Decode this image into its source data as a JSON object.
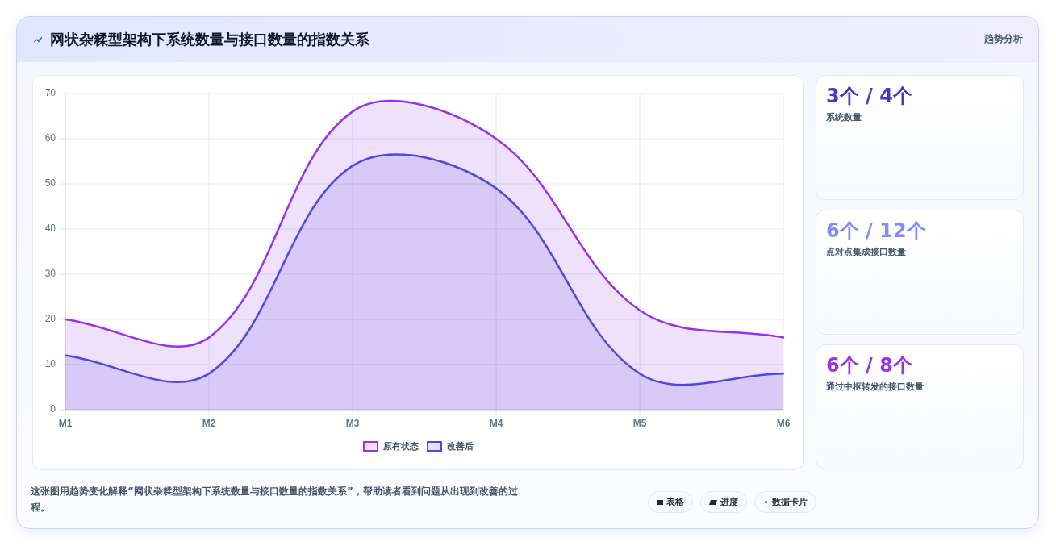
{
  "chart_data": [
    {
      "type": "area",
      "title": "网状杂糅型架构下系统数量与接口数量的指数关系",
      "categories": [
        "M1",
        "M2",
        "M3",
        "M4",
        "M5",
        "M6"
      ],
      "series": [
        {
          "name": "原有状态",
          "color": "#9333ea",
          "values": [
            20,
            16,
            66,
            60,
            22,
            16
          ]
        },
        {
          "name": "改善后",
          "color": "#4f46e5",
          "values": [
            12,
            8,
            54,
            49,
            8,
            8
          ]
        }
      ],
      "ylim": [
        0,
        70
      ],
      "yticks": [
        0,
        10,
        20,
        30,
        40,
        50,
        60,
        70
      ],
      "grid": true,
      "legend": "bottom",
      "annotations": [
        "趋势分析",
        "这张图用趋势变化解释“网状杂糅型架构下系统数量与接口数量的指数关系”，帮助读者看到问题从出现到改善的过程。",
        "表格",
        "进度",
        "数据卡片"
      ]
    },
    {
      "type": "other",
      "title": "3个 / 4个",
      "subtitle": "系统数量"
    },
    {
      "type": "other",
      "title": "6个 / 12个",
      "subtitle": "点对点集成接口数量"
    },
    {
      "type": "other",
      "title": "6个 / 8个",
      "subtitle": "通过中枢转发的接口数量"
    }
  ]
}
